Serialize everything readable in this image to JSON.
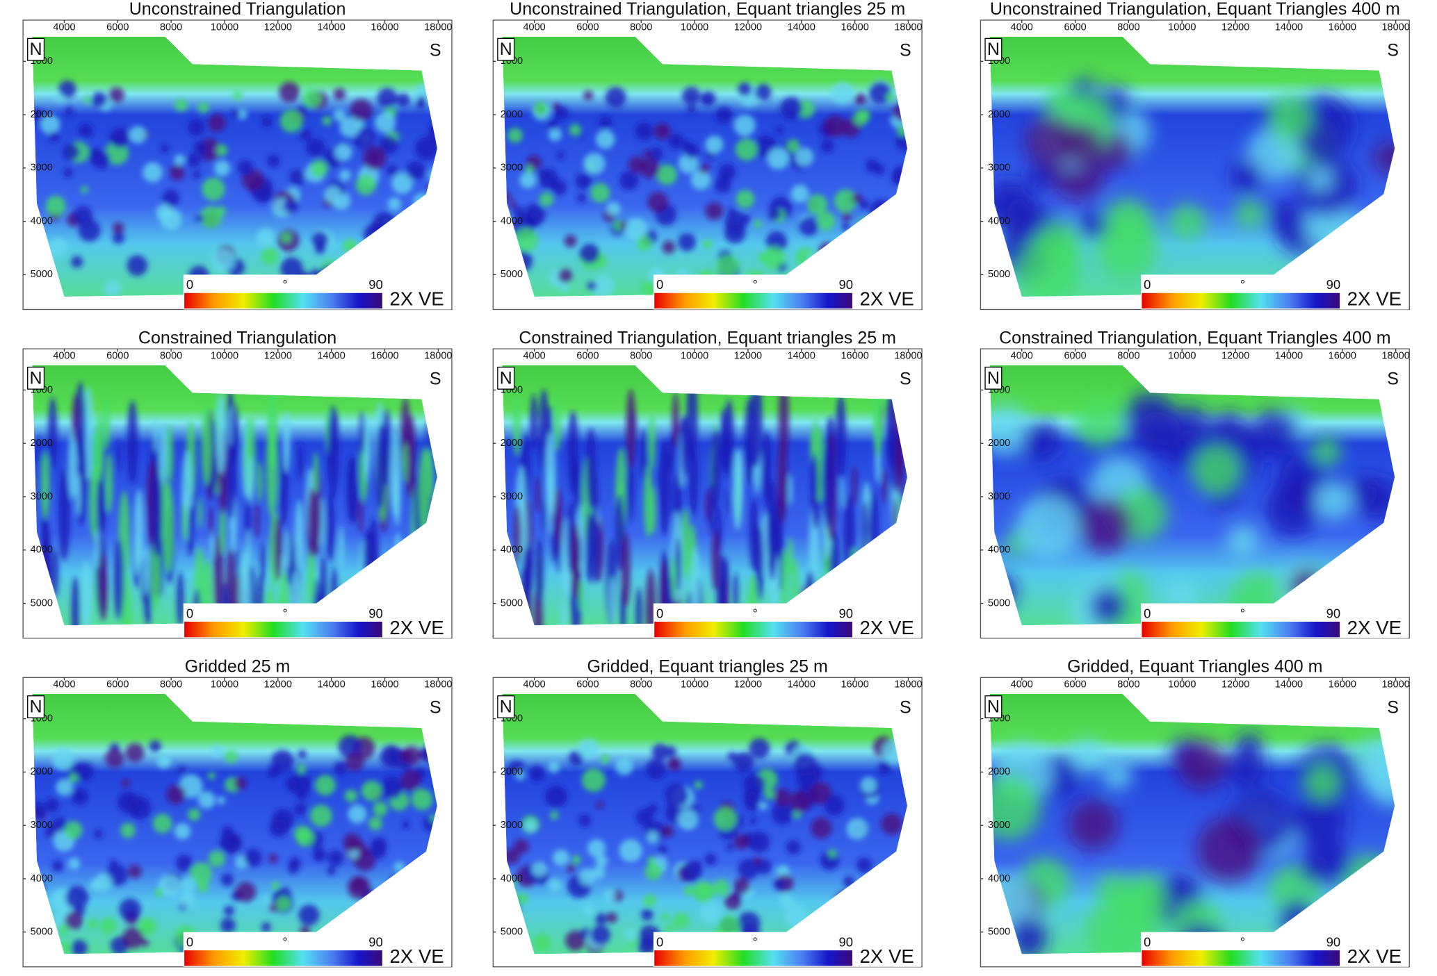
{
  "panels": [
    {
      "title": "Unconstrained Triangulation"
    },
    {
      "title": "Unconstrained Triangulation, Equant triangles 25 m"
    },
    {
      "title": "Unconstrained Triangulation, Equant Triangles 400 m"
    },
    {
      "title": "Constrained Triangulation"
    },
    {
      "title": "Constrained Triangulation, Equant triangles 25 m"
    },
    {
      "title": "Constrained Triangulation, Equant Triangles 400 m"
    },
    {
      "title": "Gridded 25 m"
    },
    {
      "title": "Gridded, Equant triangles 25 m"
    },
    {
      "title": "Gridded, Equant Triangles 400 m"
    }
  ],
  "axes": {
    "xticks": [
      "4000",
      "6000",
      "8000",
      "10000",
      "12000",
      "14000",
      "16000",
      "18000"
    ],
    "yticks": [
      "1000",
      "2000",
      "3000",
      "4000",
      "5000"
    ],
    "north": "N",
    "south": "S"
  },
  "colorbar": {
    "min": "0",
    "mid": "°",
    "max": "90",
    "label": "2X VE"
  }
}
